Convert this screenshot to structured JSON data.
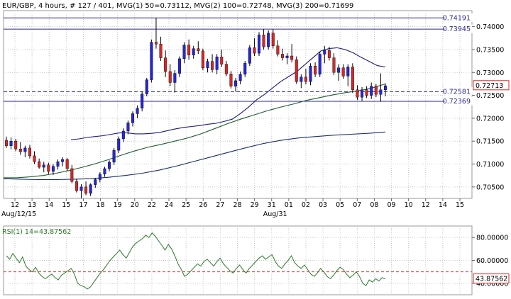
{
  "header": {
    "symbol": "EUR/GBP",
    "period": "4 hours",
    "bars": "# 127 / 401",
    "mvg1": "MVG(1) 50=0.73112",
    "mvg2": "MVG(2) 100=0.72748",
    "mvg3": "MVG(3) 200=0.71699",
    "separator": ","
  },
  "colors": {
    "up_candle": "#2626d9",
    "down_candle": "#d92626",
    "ma50": "#1a1a80",
    "ma100": "#1f5a2e",
    "ma200": "#1a2e6b",
    "rsi_line": "#2d7a2d",
    "dashed_level": "#2a2a8a",
    "rsi_level": "#d13a3a",
    "grid": "#c8c8c8"
  },
  "chart_data": [
    {
      "type": "candlestick",
      "title": "",
      "y_ticks": [
        "0.74000",
        "0.73500",
        "0.73000",
        "0.72500",
        "0.72000",
        "0.71500",
        "0.71000",
        "0.70500"
      ],
      "x_ticks": [
        "12",
        "13",
        "14",
        "15",
        "17",
        "18",
        "19",
        "20",
        "22",
        "24",
        "25",
        "26",
        "27",
        "28",
        "29",
        "31",
        "01",
        "02",
        "03",
        "05",
        "07",
        "08",
        "09",
        "10",
        "12",
        "14",
        "15"
      ],
      "date_labels": [
        {
          "text": "Aug/12/15",
          "after_tick": 0
        },
        {
          "text": "Aug/31",
          "after_tick": 15
        }
      ],
      "ylim": [
        0.7025,
        0.7435
      ],
      "horizontal_levels": [
        {
          "label": "0.74191",
          "value": 0.74191,
          "style": "solid"
        },
        {
          "label": "0.73945",
          "value": 0.73945,
          "style": "solid"
        },
        {
          "label": "0.72581",
          "value": 0.72581,
          "style": "dashed"
        },
        {
          "label": "0.72369",
          "value": 0.72369,
          "style": "solid"
        }
      ],
      "last_price": "0.72713",
      "series": [
        {
          "name": "MVG(1) 50",
          "close": [
            0.7153,
            0.7155,
            0.7158,
            0.716,
            0.7162,
            0.7165,
            0.7168,
            0.7168,
            0.7166,
            0.7166,
            0.7167,
            0.7169,
            0.7173,
            0.7177,
            0.718,
            0.7182,
            0.7184,
            0.7187,
            0.7189,
            0.7193,
            0.7198,
            0.721,
            0.7224,
            0.724,
            0.7252,
            0.7266,
            0.728,
            0.7291,
            0.7302,
            0.7317,
            0.7332,
            0.7347,
            0.7352,
            0.7354,
            0.735,
            0.7343,
            0.7333,
            0.7324,
            0.7315,
            0.7312
          ]
        },
        {
          "name": "MVG(2) 100",
          "close": [
            0.707,
            0.707,
            0.7072,
            0.7075,
            0.708,
            0.7086,
            0.7093,
            0.7101,
            0.711,
            0.712,
            0.7129,
            0.7137,
            0.7143,
            0.715,
            0.7157,
            0.7166,
            0.7177,
            0.7188,
            0.7198,
            0.7207,
            0.7216,
            0.7224,
            0.7231,
            0.7239,
            0.7245,
            0.7251,
            0.7256,
            0.726,
            0.7266,
            0.7275
          ]
        },
        {
          "name": "MVG(3) 200",
          "close": [
            0.7068,
            0.7067,
            0.7066,
            0.7066,
            0.7067,
            0.7068,
            0.7071,
            0.7075,
            0.708,
            0.7087,
            0.7096,
            0.7106,
            0.7116,
            0.7126,
            0.7136,
            0.7145,
            0.7152,
            0.7157,
            0.716,
            0.7163,
            0.7165,
            0.7167,
            0.717
          ]
        }
      ],
      "candles": [
        [
          0.7152,
          0.716,
          0.7135,
          0.714
        ],
        [
          0.714,
          0.7158,
          0.7132,
          0.715
        ],
        [
          0.715,
          0.7155,
          0.7128,
          0.7133
        ],
        [
          0.7133,
          0.7148,
          0.712,
          0.7127
        ],
        [
          0.7127,
          0.714,
          0.7115,
          0.7135
        ],
        [
          0.7135,
          0.7142,
          0.7112,
          0.7118
        ],
        [
          0.7118,
          0.7128,
          0.71,
          0.7105
        ],
        [
          0.7105,
          0.7112,
          0.709,
          0.7093
        ],
        [
          0.7093,
          0.7105,
          0.7082,
          0.7098
        ],
        [
          0.7098,
          0.7103,
          0.7078,
          0.7084
        ],
        [
          0.7084,
          0.71,
          0.7076,
          0.7095
        ],
        [
          0.7095,
          0.711,
          0.7088,
          0.7105
        ],
        [
          0.7105,
          0.7115,
          0.7095,
          0.711
        ],
        [
          0.711,
          0.7113,
          0.7085,
          0.709
        ],
        [
          0.709,
          0.7098,
          0.7058,
          0.7062
        ],
        [
          0.7062,
          0.7068,
          0.7038,
          0.7042
        ],
        [
          0.7042,
          0.7056,
          0.7025,
          0.705
        ],
        [
          0.705,
          0.7062,
          0.7032,
          0.7036
        ],
        [
          0.7036,
          0.7058,
          0.703,
          0.7055
        ],
        [
          0.7055,
          0.707,
          0.7048,
          0.7066
        ],
        [
          0.7066,
          0.7082,
          0.706,
          0.7078
        ],
        [
          0.7078,
          0.7094,
          0.7072,
          0.709
        ],
        [
          0.709,
          0.7108,
          0.7084,
          0.7104
        ],
        [
          0.7104,
          0.7135,
          0.7098,
          0.713
        ],
        [
          0.713,
          0.716,
          0.7124,
          0.7155
        ],
        [
          0.7155,
          0.7178,
          0.7148,
          0.7172
        ],
        [
          0.7172,
          0.7195,
          0.7165,
          0.719
        ],
        [
          0.719,
          0.7215,
          0.7182,
          0.721
        ],
        [
          0.721,
          0.7228,
          0.72,
          0.7222
        ],
        [
          0.7222,
          0.7258,
          0.7215,
          0.7253
        ],
        [
          0.7253,
          0.7288,
          0.7248,
          0.7284
        ],
        [
          0.7284,
          0.7372,
          0.7278,
          0.7366
        ],
        [
          0.7366,
          0.7419,
          0.7352,
          0.7362
        ],
        [
          0.7362,
          0.7378,
          0.7325,
          0.7332
        ],
        [
          0.7332,
          0.7348,
          0.729,
          0.7302
        ],
        [
          0.7302,
          0.7318,
          0.727,
          0.7278
        ],
        [
          0.7278,
          0.7305,
          0.7256,
          0.7298
        ],
        [
          0.7298,
          0.7335,
          0.729,
          0.733
        ],
        [
          0.733,
          0.7366,
          0.732,
          0.736
        ],
        [
          0.736,
          0.7372,
          0.7328,
          0.7338
        ],
        [
          0.7338,
          0.7358,
          0.733,
          0.7352
        ],
        [
          0.7352,
          0.7368,
          0.734,
          0.7347
        ],
        [
          0.7347,
          0.7352,
          0.7305,
          0.731
        ],
        [
          0.731,
          0.733,
          0.73,
          0.7324
        ],
        [
          0.7324,
          0.734,
          0.73,
          0.7306
        ],
        [
          0.7306,
          0.734,
          0.7296,
          0.7334
        ],
        [
          0.7334,
          0.735,
          0.7312,
          0.7318
        ],
        [
          0.7318,
          0.7325,
          0.7292,
          0.7297
        ],
        [
          0.7297,
          0.7303,
          0.7265,
          0.727
        ],
        [
          0.727,
          0.7288,
          0.7258,
          0.7282
        ],
        [
          0.7282,
          0.7302,
          0.7274,
          0.7296
        ],
        [
          0.7296,
          0.7325,
          0.729,
          0.732
        ],
        [
          0.732,
          0.736,
          0.7314,
          0.7354
        ],
        [
          0.7354,
          0.7375,
          0.7336,
          0.7342
        ],
        [
          0.7342,
          0.7388,
          0.7336,
          0.7382
        ],
        [
          0.7382,
          0.7395,
          0.735,
          0.7356
        ],
        [
          0.7356,
          0.7392,
          0.735,
          0.7386
        ],
        [
          0.7386,
          0.7394,
          0.7352,
          0.7358
        ],
        [
          0.7358,
          0.737,
          0.7335,
          0.734
        ],
        [
          0.734,
          0.7352,
          0.7326,
          0.7332
        ],
        [
          0.7332,
          0.7342,
          0.7318,
          0.7336
        ],
        [
          0.7336,
          0.7362,
          0.7322,
          0.7328
        ],
        [
          0.7328,
          0.7335,
          0.7275,
          0.728
        ],
        [
          0.728,
          0.7296,
          0.7266,
          0.729
        ],
        [
          0.729,
          0.7308,
          0.7274,
          0.728
        ],
        [
          0.728,
          0.732,
          0.7272,
          0.7314
        ],
        [
          0.7314,
          0.7322,
          0.729,
          0.7296
        ],
        [
          0.7296,
          0.7345,
          0.729,
          0.734
        ],
        [
          0.734,
          0.7358,
          0.732,
          0.7348
        ],
        [
          0.7348,
          0.7356,
          0.7326,
          0.7332
        ],
        [
          0.7332,
          0.7342,
          0.7294,
          0.73
        ],
        [
          0.73,
          0.7318,
          0.7282,
          0.731
        ],
        [
          0.731,
          0.7318,
          0.7286,
          0.7292
        ],
        [
          0.7292,
          0.7318,
          0.727,
          0.7312
        ],
        [
          0.7312,
          0.732,
          0.7255,
          0.7262
        ],
        [
          0.7262,
          0.7272,
          0.724,
          0.7246
        ],
        [
          0.7246,
          0.7268,
          0.7238,
          0.7262
        ],
        [
          0.7262,
          0.727,
          0.7244,
          0.725
        ],
        [
          0.725,
          0.7278,
          0.7242,
          0.727
        ],
        [
          0.727,
          0.7275,
          0.7246,
          0.7252
        ],
        [
          0.7252,
          0.7298,
          0.7236,
          0.7262
        ],
        [
          0.7262,
          0.7276,
          0.7248,
          0.7271
        ]
      ]
    },
    {
      "type": "line",
      "title": "",
      "label": "RSI(1) 14=43.87562",
      "y_ticks": [
        "80.00000",
        "60.00000",
        "40.00000"
      ],
      "ylim": [
        30,
        90
      ],
      "level": 50,
      "last_value": "43.87562",
      "series": [
        {
          "name": "RSI(1) 14",
          "values": [
            64,
            61,
            66,
            62,
            58,
            63,
            55,
            52,
            50,
            54,
            49,
            46,
            44,
            46,
            48,
            45,
            43,
            47,
            49,
            51,
            53,
            48,
            40,
            38,
            37,
            35,
            37,
            41,
            45,
            49,
            52,
            56,
            60,
            63,
            66,
            69,
            65,
            62,
            67,
            72,
            75,
            77,
            79,
            82,
            80,
            84,
            81,
            77,
            73,
            69,
            74,
            70,
            64,
            57,
            52,
            46,
            48,
            51,
            54,
            57,
            55,
            59,
            61,
            58,
            55,
            59,
            62,
            57,
            54,
            51,
            49,
            53,
            56,
            52,
            49,
            53,
            56,
            59,
            62,
            64,
            61,
            63,
            65,
            59,
            55,
            53,
            57,
            60,
            64,
            58,
            55,
            53,
            56,
            52,
            48,
            46,
            49,
            53,
            50,
            46,
            44,
            47,
            51,
            54,
            52,
            48,
            45,
            47,
            50,
            46,
            40,
            38,
            43,
            41,
            44,
            42,
            45,
            43.9
          ]
        }
      ]
    }
  ]
}
